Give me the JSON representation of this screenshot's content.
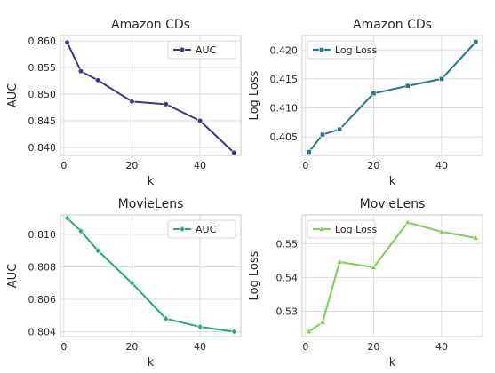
{
  "chart_data": [
    {
      "type": "line",
      "title": "Amazon CDs",
      "xlabel": "k",
      "ylabel": "AUC",
      "xlim": [
        -1,
        52
      ],
      "ylim": [
        0.8385,
        0.861
      ],
      "xticks": [
        0,
        20,
        40
      ],
      "yticks": [
        0.84,
        0.845,
        0.85,
        0.855,
        0.86
      ],
      "ytick_labels": [
        "0.840",
        "0.845",
        "0.850",
        "0.855",
        "0.860"
      ],
      "grid": true,
      "legend": "top-right",
      "series": [
        {
          "name": "AUC",
          "color": "#3a3a7f",
          "marker": "circle",
          "x": [
            1,
            5,
            10,
            20,
            30,
            40,
            50
          ],
          "y": [
            0.8597,
            0.8543,
            0.8526,
            0.8486,
            0.8481,
            0.845,
            0.839
          ]
        }
      ]
    },
    {
      "type": "line",
      "title": "Amazon CDs",
      "xlabel": "k",
      "ylabel": "Log Loss",
      "xlim": [
        -1,
        52
      ],
      "ylim": [
        0.4018,
        0.4225
      ],
      "xticks": [
        0,
        20,
        40
      ],
      "yticks": [
        0.405,
        0.41,
        0.415,
        0.42
      ],
      "ytick_labels": [
        "0.405",
        "0.410",
        "0.415",
        "0.420"
      ],
      "grid": true,
      "legend": "top-left",
      "series": [
        {
          "name": "Log Loss",
          "color": "#247a85",
          "marker": "square",
          "x": [
            1,
            5,
            10,
            20,
            30,
            40,
            50
          ],
          "y": [
            0.4024,
            0.4054,
            0.4063,
            0.4125,
            0.4138,
            0.415,
            0.4214
          ]
        }
      ]
    },
    {
      "type": "line",
      "title": "MovieLens",
      "xlabel": "k",
      "ylabel": "AUC",
      "xlim": [
        -1,
        52
      ],
      "ylim": [
        0.8037,
        0.8112
      ],
      "xticks": [
        0,
        20,
        40
      ],
      "yticks": [
        0.804,
        0.806,
        0.808,
        0.81
      ],
      "ytick_labels": [
        "0.804",
        "0.806",
        "0.808",
        "0.810"
      ],
      "grid": true,
      "legend": "top-right",
      "series": [
        {
          "name": "AUC",
          "color": "#24a87e",
          "marker": "diamond",
          "x": [
            1,
            5,
            10,
            20,
            30,
            40,
            50
          ],
          "y": [
            0.811,
            0.8102,
            0.809,
            0.807,
            0.8048,
            0.8043,
            0.804
          ]
        }
      ]
    },
    {
      "type": "line",
      "title": "MovieLens",
      "xlabel": "k",
      "ylabel": "Log Loss",
      "xlim": [
        -1,
        52
      ],
      "ylim": [
        0.5225,
        0.5585
      ],
      "xticks": [
        0,
        20,
        40
      ],
      "yticks": [
        0.53,
        0.54,
        0.55
      ],
      "ytick_labels": [
        "0.53",
        "0.54",
        "0.55"
      ],
      "grid": true,
      "legend": "top-left",
      "series": [
        {
          "name": "Log Loss",
          "color": "#79d151",
          "marker": "triangle",
          "x": [
            1,
            5,
            10,
            20,
            30,
            40,
            50
          ],
          "y": [
            0.524,
            0.5267,
            0.5446,
            0.543,
            0.5563,
            0.5535,
            0.5517
          ]
        }
      ]
    }
  ]
}
